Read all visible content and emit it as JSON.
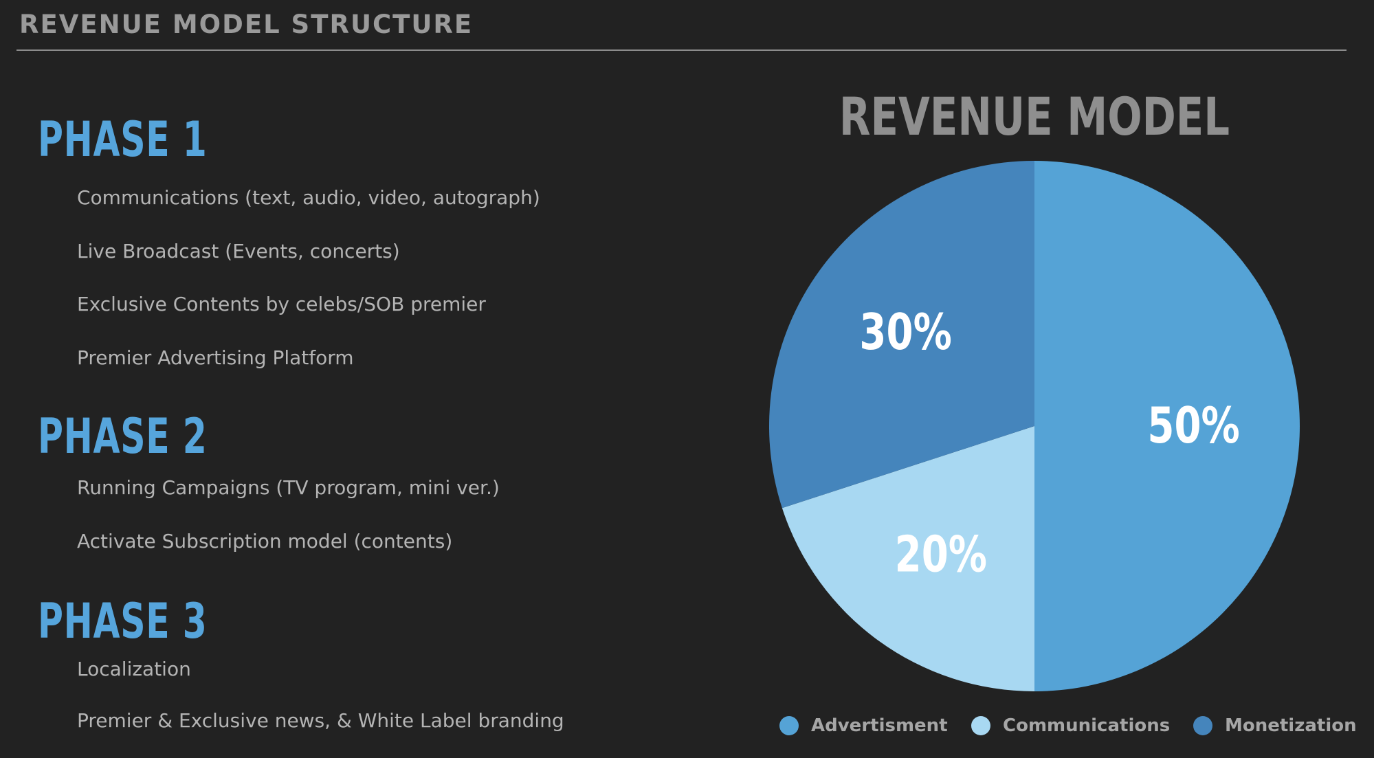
{
  "slide": {
    "title": "REVENUE MODEL STRUCTURE"
  },
  "phases": [
    {
      "heading": "PHASE 1",
      "items": [
        "Communications (text, audio, video, autograph)",
        "Live Broadcast (Events, concerts)",
        "Exclusive Contents by celebs/SOB premier",
        "Premier Advertising Platform"
      ]
    },
    {
      "heading": "PHASE 2",
      "items": [
        "Running Campaigns (TV program, mini ver.)",
        "Activate Subscription model (contents)"
      ]
    },
    {
      "heading": "PHASE 3",
      "items": [
        "Localization",
        "Premier & Exclusive news, & White Label branding"
      ]
    }
  ],
  "chart_data": {
    "type": "pie",
    "title": "REVENUE MODEL",
    "categories": [
      "Advertisment",
      "Communications",
      "Monetization"
    ],
    "values": [
      50,
      20,
      30
    ],
    "labels": [
      "50%",
      "20%",
      "30%"
    ],
    "colors": [
      "#55a3d6",
      "#a8d8f2",
      "#4585bc"
    ],
    "start_angle_deg": 0,
    "direction": "clockwise",
    "legend_position": "bottom",
    "label_color": "#ffffff",
    "title_color": "#8f8f8f"
  }
}
